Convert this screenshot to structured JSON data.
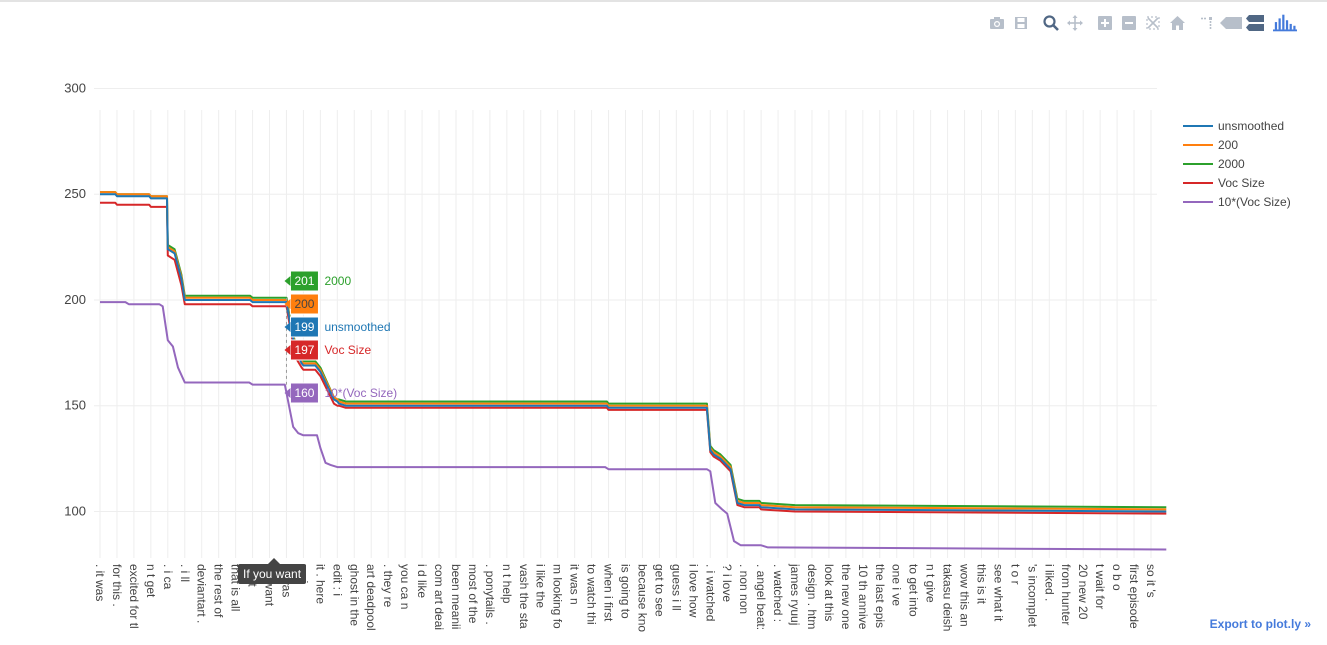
{
  "modebar": {
    "icons": [
      "camera-icon",
      "save-icon",
      "zoom-icon",
      "pan-icon",
      "zoom-in-icon",
      "zoom-out-icon",
      "autoscale-icon",
      "home-icon",
      "spike-lines-icon",
      "hover-closest-icon",
      "hover-compare-icon",
      "plotly-logo-icon"
    ]
  },
  "export_link": "Export to plot.ly »",
  "tooltip": "If you want",
  "chart_data": {
    "type": "line",
    "title": "",
    "xlabel": "",
    "ylabel": "",
    "ylim": [
      78,
      304
    ],
    "yticks": [
      100,
      150,
      200,
      250,
      300
    ],
    "grid": true,
    "legend_position": "right",
    "categories": [
      ". it was",
      "for this .",
      "excited for tl",
      "n t get",
      ". i ca",
      ". i ll",
      "deviantart .",
      "the rest of",
      "that is all",
      "s n t",
      "pu want",
      "is was",
      "p : i",
      "it . here",
      "edit : i",
      "ghost in the",
      "art deadpool",
      ". they re",
      "you ca n",
      "i d like",
      "com art deai",
      "been meanii",
      "most of the",
      ". ponytails .",
      "n t help",
      "vash the sta",
      "i like the",
      "m looking fo",
      "it was n",
      "to watch thi",
      "when i first",
      "is going to",
      "because kno",
      "get to see",
      "guess i ll",
      "i love how",
      ". i watched",
      "? i love",
      ". non non",
      ". angel beat:",
      ". watched :",
      "james ryuuj",
      "design . htm",
      "look at this",
      "the new one",
      "10 th annive",
      "the last epis",
      "one i ve",
      "to get into",
      "n t give",
      "takasu deish",
      "wow this an",
      "this is it",
      "see what it",
      "t o r",
      "'s incomplet",
      "i liked .",
      "from hunter",
      "20 new 20",
      "t wait for",
      "o b o",
      "first episode",
      "so it 's"
    ],
    "series": [
      {
        "name": "unsmoothed",
        "color": "#1f77b4",
        "x": [
          0,
          0.9,
          1.0,
          2.9,
          3.0,
          3.95,
          4.0,
          4.4,
          4.8,
          5.0,
          8.85,
          9.0,
          11.0,
          11.3,
          11.6,
          11.9,
          12.0,
          12.7,
          13.0,
          13.8,
          14.0,
          14.1,
          14.5,
          15.0,
          29.9,
          30.0,
          35.8,
          36.0,
          36.2,
          36.6,
          37.2,
          37.6,
          38.0,
          38.9,
          39.0,
          41.0,
          62.9
        ],
        "values": [
          250,
          250,
          249,
          249,
          248,
          248,
          224,
          222,
          210,
          200,
          200,
          199,
          199,
          185,
          175,
          170,
          169,
          169,
          166,
          153,
          152,
          151,
          150,
          150,
          150,
          149,
          149,
          129,
          127,
          125,
          120,
          104,
          103,
          103,
          102,
          101,
          100
        ]
      },
      {
        "name": "200",
        "color": "#ff7f0e",
        "x": [
          0,
          0.9,
          1.0,
          2.9,
          3.0,
          3.95,
          4.0,
          4.4,
          4.8,
          5.0,
          8.85,
          9.0,
          11.0,
          11.3,
          11.6,
          11.9,
          12.0,
          12.7,
          13.0,
          13.8,
          14.0,
          14.1,
          14.5,
          15.0,
          29.9,
          30.0,
          35.8,
          36.0,
          36.2,
          36.6,
          37.2,
          37.6,
          38.0,
          38.9,
          39.0,
          41.0,
          62.9
        ],
        "values": [
          251,
          251,
          250,
          250,
          249,
          249,
          225,
          223,
          211,
          201,
          201,
          200,
          200,
          186,
          176,
          171,
          170,
          170,
          167,
          154,
          153,
          152,
          151,
          151,
          151,
          150,
          150,
          130,
          128,
          126,
          121,
          105,
          104,
          104,
          103,
          102,
          101
        ]
      },
      {
        "name": "2000",
        "color": "#2ca02c",
        "x": [
          0,
          0.9,
          1.0,
          2.9,
          3.0,
          3.95,
          4.0,
          4.4,
          4.8,
          5.0,
          8.85,
          9.0,
          11.0,
          11.3,
          11.6,
          11.9,
          12.0,
          12.7,
          13.0,
          13.8,
          14.0,
          14.1,
          14.5,
          15.0,
          29.9,
          30.0,
          35.8,
          36.0,
          36.2,
          36.6,
          37.2,
          37.6,
          38.0,
          38.9,
          39.0,
          41.0,
          62.9
        ],
        "values": [
          251,
          251,
          250,
          250,
          249,
          249,
          226,
          224,
          212,
          202,
          202,
          201,
          201,
          187,
          177,
          172,
          171,
          171,
          168,
          154,
          153,
          153,
          152,
          152,
          152,
          151,
          151,
          131,
          129,
          127,
          122,
          106,
          105,
          105,
          104,
          103,
          102
        ]
      },
      {
        "name": "Voc Size",
        "color": "#d62728",
        "x": [
          0,
          0.9,
          1.0,
          2.9,
          3.0,
          3.95,
          4.0,
          4.4,
          4.8,
          5.0,
          8.85,
          9.0,
          11.0,
          11.3,
          11.6,
          11.9,
          12.0,
          12.7,
          13.0,
          13.8,
          14.0,
          14.1,
          14.5,
          15.0,
          29.9,
          30.0,
          35.8,
          36.0,
          36.2,
          36.6,
          37.2,
          37.6,
          38.0,
          38.9,
          39.0,
          41.0,
          62.9
        ],
        "values": [
          246,
          246,
          245,
          245,
          244,
          244,
          221,
          219,
          207,
          198,
          198,
          197,
          197,
          183,
          172,
          168,
          167,
          167,
          164,
          151,
          150,
          150,
          149,
          149,
          149,
          148,
          148,
          128,
          126,
          124,
          119,
          103,
          102,
          102,
          101,
          100,
          99
        ]
      },
      {
        "name": "10*(Voc Size)",
        "color": "#9467bd",
        "x": [
          0,
          1.5,
          1.7,
          3.5,
          3.7,
          4.0,
          4.3,
          4.6,
          5.0,
          8.8,
          9.0,
          10.9,
          11.0,
          11.4,
          11.7,
          12.0,
          12.8,
          13.0,
          13.3,
          13.6,
          14.0,
          29.8,
          30.0,
          35.8,
          36.0,
          36.3,
          36.7,
          37.0,
          37.4,
          37.8,
          39.0,
          39.4,
          62.9
        ],
        "values": [
          199,
          199,
          198,
          198,
          197,
          181,
          178,
          168,
          161,
          161,
          160,
          160,
          156,
          140,
          137,
          136,
          136,
          130,
          123,
          122,
          121,
          121,
          120,
          120,
          119,
          104,
          101,
          99,
          86,
          84,
          84,
          83,
          82
        ]
      }
    ],
    "hover_labels": [
      {
        "series": "2000",
        "value": "201",
        "name": "2000"
      },
      {
        "series": "200",
        "value": "200",
        "name": ""
      },
      {
        "series": "unsmoothed",
        "value": "199",
        "name": "unsmoothed"
      },
      {
        "series": "Voc Size",
        "value": "197",
        "name": "Voc Size"
      },
      {
        "series": "10*(Voc Size)",
        "value": "160",
        "name": "10*(Voc Size)"
      }
    ]
  }
}
